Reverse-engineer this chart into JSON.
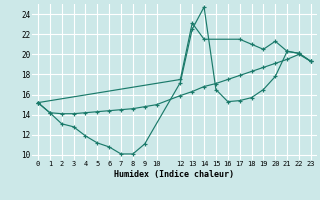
{
  "xlabel": "Humidex (Indice chaleur)",
  "xlim": [
    -0.5,
    23.5
  ],
  "ylim": [
    9.5,
    25.0
  ],
  "xticks": [
    0,
    1,
    2,
    3,
    4,
    5,
    6,
    7,
    8,
    9,
    10,
    12,
    13,
    14,
    15,
    16,
    17,
    18,
    19,
    20,
    21,
    22,
    23
  ],
  "yticks": [
    10,
    12,
    14,
    16,
    18,
    20,
    22,
    24
  ],
  "bg_color": "#cce8e8",
  "grid_color": "#ffffff",
  "line_color": "#1a7a6a",
  "lines": [
    {
      "x": [
        0,
        1,
        2,
        3,
        4,
        5,
        6,
        7,
        8,
        9,
        12,
        13,
        14,
        15,
        16,
        17,
        18,
        19,
        20,
        21,
        22,
        23
      ],
      "y": [
        15.2,
        14.2,
        13.1,
        12.8,
        11.9,
        11.2,
        10.8,
        10.1,
        10.1,
        11.1,
        17.2,
        22.5,
        24.7,
        16.5,
        15.3,
        15.4,
        15.7,
        16.5,
        17.8,
        20.3,
        20.1,
        19.3
      ]
    },
    {
      "x": [
        0,
        1,
        2,
        3,
        4,
        5,
        6,
        7,
        8,
        9,
        10,
        12,
        13,
        14,
        15,
        16,
        17,
        18,
        19,
        20,
        21,
        22,
        23
      ],
      "y": [
        15.2,
        14.2,
        14.1,
        14.1,
        14.2,
        14.3,
        14.4,
        14.5,
        14.6,
        14.8,
        15.0,
        15.9,
        16.3,
        16.8,
        17.1,
        17.5,
        17.9,
        18.3,
        18.7,
        19.1,
        19.5,
        20.0,
        19.3
      ]
    },
    {
      "x": [
        0,
        12,
        13,
        14,
        17,
        18,
        19,
        20,
        21,
        22,
        23
      ],
      "y": [
        15.2,
        17.5,
        23.1,
        21.5,
        21.5,
        21.0,
        20.5,
        21.3,
        20.3,
        20.1,
        19.3
      ]
    }
  ]
}
